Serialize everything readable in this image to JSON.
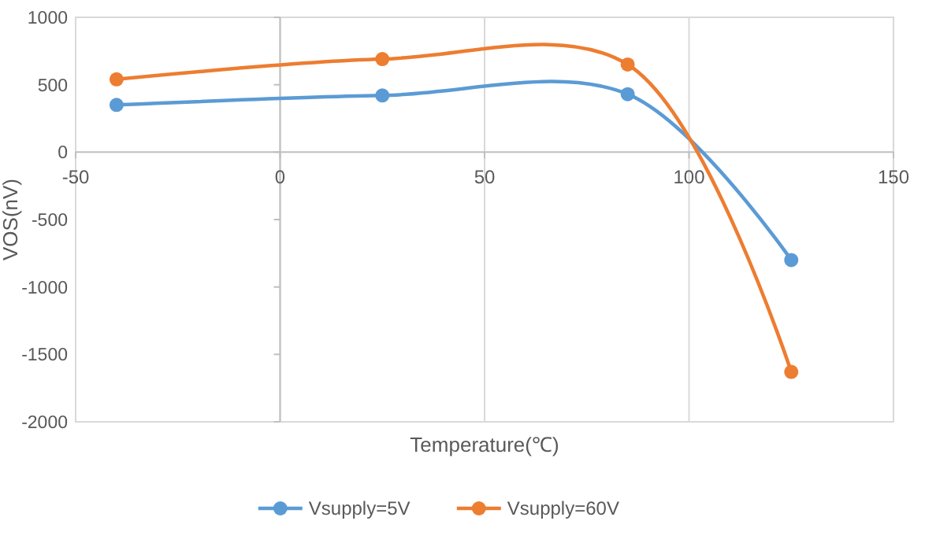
{
  "chart_data": {
    "type": "line",
    "xlabel": "Temperature(℃)",
    "ylabel": "VOS(nV)",
    "x": [
      -40,
      25,
      85,
      125
    ],
    "series": [
      {
        "name": "Vsupply=5V",
        "color": "#5b9bd5",
        "values": [
          350,
          420,
          430,
          -800
        ]
      },
      {
        "name": "Vsupply=60V",
        "color": "#ed7d31",
        "values": [
          540,
          690,
          650,
          -1630
        ]
      }
    ],
    "xlim": [
      -50,
      150
    ],
    "xticks": [
      -50,
      0,
      50,
      100,
      150
    ],
    "ylim": [
      -2000,
      1000
    ],
    "yticks": [
      -2000,
      -1500,
      -1000,
      -500,
      0,
      500,
      1000
    ],
    "grid": "x",
    "legend": "bottom",
    "marker": "circle",
    "line_style": "solid"
  }
}
